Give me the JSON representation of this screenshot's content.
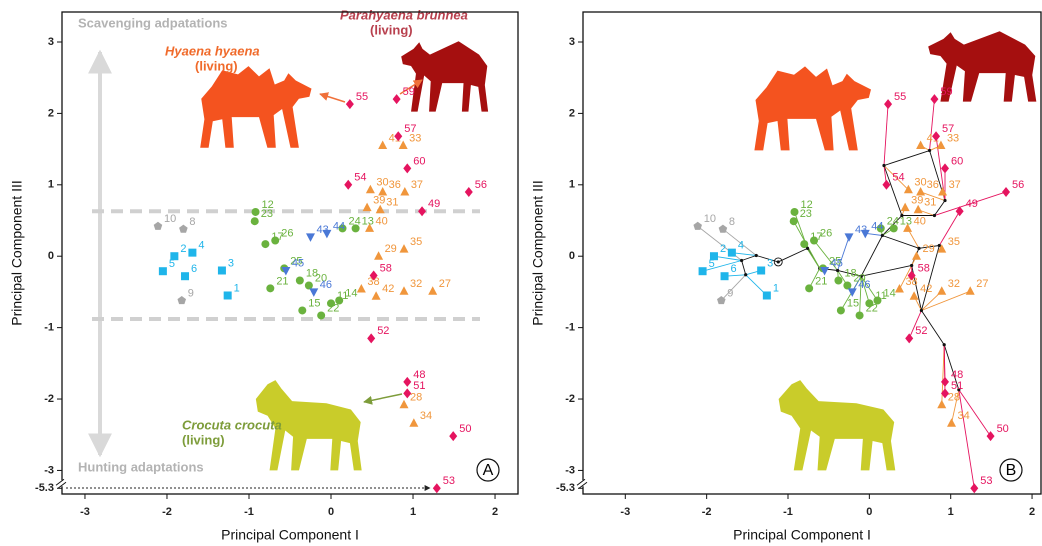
{
  "chart_data": [
    {
      "type": "scatter",
      "panel_label": "A",
      "xlabel": "Principal Component I",
      "ylabel": "Principal Component III",
      "xlim": [
        -3.28,
        2.28
      ],
      "ylim": [
        -5.38,
        3.42
      ],
      "ybreak": [
        -5.3,
        -3.25
      ],
      "xticks": [
        -3,
        -2,
        -1,
        0,
        1,
        2
      ],
      "yticks": [
        3,
        2,
        1,
        0,
        -1,
        -2,
        -3,
        -5.3
      ],
      "reference_lines": [
        0.63,
        -0.88
      ],
      "annotations": [
        "Scavenging adpatations",
        "Hunting adaptations",
        "Hyaena hyaena",
        "(living)",
        "Parahyaena brunnea",
        "(living)",
        "Crocuta crocuta",
        "(living)"
      ],
      "series": [
        {
          "color": "#a6a6a6",
          "marker": "pentagon",
          "labels": [
            10,
            8,
            9
          ],
          "x": [
            -2.11,
            -1.8,
            -1.82
          ],
          "y": [
            0.42,
            0.38,
            -0.62
          ]
        },
        {
          "color": "#1fb5ea",
          "marker": "square",
          "labels": [
            2,
            4,
            5,
            6,
            3,
            1
          ],
          "x": [
            -1.91,
            -1.69,
            -2.05,
            -1.78,
            -1.33,
            -1.26
          ],
          "y": [
            0.0,
            0.05,
            -0.21,
            -0.28,
            -0.2,
            -0.55
          ]
        },
        {
          "color": "#6ab23e",
          "marker": "circle",
          "labels": [
            12,
            23,
            17,
            26,
            25,
            21,
            18,
            20,
            15,
            22,
            11,
            14,
            24,
            13
          ],
          "x": [
            -0.92,
            -0.93,
            -0.8,
            -0.68,
            -0.57,
            -0.74,
            -0.38,
            -0.27,
            -0.35,
            -0.12,
            0,
            0.1,
            0.14,
            0.3
          ],
          "y": [
            0.62,
            0.49,
            0.17,
            0.22,
            -0.17,
            -0.45,
            -0.34,
            -0.41,
            -0.76,
            -0.83,
            -0.66,
            -0.62,
            0.39,
            0.39
          ]
        },
        {
          "color": "#4a78d6",
          "marker": "triangle-down",
          "labels": [
            44,
            43,
            45,
            46
          ],
          "x": [
            -0.05,
            -0.25,
            -0.55,
            -0.21
          ],
          "y": [
            0.32,
            0.27,
            -0.2,
            -0.5
          ]
        },
        {
          "color": "#f0963c",
          "marker": "triangle",
          "labels": [
            41,
            33,
            30,
            36,
            37,
            39,
            31,
            40,
            35,
            29,
            38,
            32,
            27,
            42,
            28,
            34
          ],
          "x": [
            0.63,
            0.88,
            0.48,
            0.63,
            0.9,
            0.44,
            0.6,
            0.47,
            0.89,
            0.58,
            0.37,
            0.89,
            1.24,
            0.55,
            0.89,
            1.01
          ],
          "y": [
            1.55,
            1.55,
            0.93,
            0.9,
            0.9,
            0.68,
            0.65,
            0.39,
            0.1,
            0.0,
            -0.46,
            -0.49,
            -0.49,
            -0.56,
            -2.08,
            -2.34
          ]
        },
        {
          "color": "#e5145f",
          "marker": "diamond",
          "labels": [
            55,
            59,
            57,
            60,
            54,
            56,
            49,
            58,
            52,
            48,
            51,
            50,
            53
          ],
          "x": [
            0.23,
            0.8,
            0.82,
            0.93,
            0.21,
            1.68,
            1.11,
            0.52,
            0.49,
            0.93,
            0.93,
            1.49,
            1.29
          ],
          "y": [
            2.13,
            2.2,
            1.68,
            1.23,
            1.0,
            0.9,
            0.63,
            -0.27,
            -1.15,
            -1.76,
            -1.92,
            -2.52,
            -5.3
          ]
        }
      ]
    },
    {
      "type": "scatter",
      "panel_label": "B",
      "xlabel": "Principal Component I",
      "ylabel": "Principal Component III",
      "xlim": [
        -3.52,
        2.11
      ],
      "ylim": [
        -5.38,
        3.42
      ],
      "ybreak": [
        -5.3,
        -3.25
      ],
      "xticks": [
        -3,
        -2,
        -1,
        0,
        1,
        2
      ],
      "yticks": [
        3,
        2,
        1,
        0,
        -1,
        -2,
        -3,
        -5.3
      ],
      "tree": {
        "root": 0,
        "x": [
          -1.12,
          -1.39,
          -1.57,
          -0.76,
          -0.61,
          -0.39,
          -0.1,
          0.16,
          0.4,
          0.61,
          0.8,
          0.93,
          0.18,
          0.86,
          0.64,
          0.92,
          1.1,
          0.74,
          0.52,
          -1.52
        ],
        "y": [
          -0.08,
          0.01,
          -0.06,
          0.11,
          -0.17,
          -0.2,
          -0.28,
          0.29,
          0.57,
          0.11,
          0.57,
          0.78,
          1.27,
          0.15,
          -0.76,
          -1.24,
          -1.87,
          1.48,
          -0.13,
          -0.26
        ],
        "edges": [
          [
            0,
            1
          ],
          [
            1,
            2
          ],
          [
            2,
            19
          ],
          [
            0,
            3
          ],
          [
            3,
            4
          ],
          [
            4,
            5
          ],
          [
            5,
            6
          ],
          [
            6,
            7
          ],
          [
            6,
            18
          ],
          [
            7,
            8
          ],
          [
            8,
            12
          ],
          [
            8,
            10
          ],
          [
            10,
            11
          ],
          [
            11,
            17
          ],
          [
            7,
            9
          ],
          [
            9,
            13
          ],
          [
            13,
            14
          ],
          [
            14,
            15
          ],
          [
            15,
            16
          ],
          [
            18,
            14
          ],
          [
            9,
            18
          ],
          [
            12,
            17
          ]
        ]
      },
      "series": [
        {
          "color": "#a6a6a6",
          "marker": "pentagon",
          "labels": [
            10,
            8,
            9
          ],
          "x": [
            -2.11,
            -1.8,
            -1.82
          ],
          "y": [
            0.42,
            0.38,
            -0.62
          ],
          "parent": [
            2,
            1,
            19
          ]
        },
        {
          "color": "#1fb5ea",
          "marker": "square",
          "labels": [
            2,
            4,
            5,
            6,
            3,
            1
          ],
          "x": [
            -1.91,
            -1.69,
            -2.05,
            -1.78,
            -1.33,
            -1.26
          ],
          "y": [
            0.0,
            0.05,
            -0.21,
            -0.28,
            -0.2,
            -0.55
          ],
          "parent": [
            2,
            1,
            2,
            19,
            19,
            19
          ]
        },
        {
          "color": "#6ab23e",
          "marker": "circle",
          "labels": [
            12,
            23,
            17,
            26,
            25,
            21,
            18,
            20,
            15,
            22,
            11,
            14,
            24,
            13
          ],
          "x": [
            -0.92,
            -0.93,
            -0.8,
            -0.68,
            -0.57,
            -0.74,
            -0.38,
            -0.27,
            -0.35,
            -0.12,
            0,
            0.1,
            0.14,
            0.3
          ],
          "y": [
            0.62,
            0.49,
            0.17,
            0.22,
            -0.17,
            -0.45,
            -0.34,
            -0.41,
            -0.76,
            -0.83,
            -0.66,
            -0.62,
            0.39,
            0.39
          ],
          "parent": [
            3,
            4,
            4,
            5,
            4,
            4,
            5,
            5,
            6,
            6,
            6,
            6,
            7,
            7
          ]
        },
        {
          "color": "#4a78d6",
          "marker": "triangle-down",
          "labels": [
            44,
            43,
            45,
            46
          ],
          "x": [
            -0.05,
            -0.25,
            -0.55,
            -0.21
          ],
          "y": [
            0.32,
            0.27,
            -0.2,
            -0.5
          ],
          "parent": [
            7,
            5,
            4,
            6
          ]
        },
        {
          "color": "#f0963c",
          "marker": "triangle",
          "labels": [
            41,
            33,
            30,
            36,
            37,
            39,
            31,
            40,
            35,
            29,
            38,
            32,
            27,
            42,
            28,
            34
          ],
          "x": [
            0.63,
            0.88,
            0.48,
            0.63,
            0.9,
            0.44,
            0.6,
            0.47,
            0.89,
            0.58,
            0.37,
            0.89,
            1.24,
            0.55,
            0.89,
            1.01
          ],
          "y": [
            1.55,
            1.55,
            0.93,
            0.9,
            0.9,
            0.68,
            0.65,
            0.39,
            0.1,
            0.0,
            -0.46,
            -0.49,
            -0.49,
            -0.56,
            -2.08,
            -2.34
          ],
          "parent": [
            17,
            17,
            12,
            11,
            11,
            8,
            10,
            9,
            13,
            18,
            18,
            14,
            14,
            14,
            15,
            16
          ]
        },
        {
          "color": "#e5145f",
          "marker": "diamond",
          "labels": [
            55,
            59,
            57,
            60,
            54,
            56,
            49,
            58,
            52,
            48,
            51,
            50,
            53
          ],
          "x": [
            0.23,
            0.8,
            0.82,
            0.93,
            0.21,
            1.68,
            1.11,
            0.52,
            0.49,
            0.93,
            0.93,
            1.49,
            1.29
          ],
          "y": [
            2.13,
            2.2,
            1.68,
            1.23,
            1.0,
            0.9,
            0.63,
            -0.27,
            -1.15,
            -1.76,
            -1.92,
            -2.52,
            -5.3
          ],
          "parent": [
            12,
            17,
            11,
            11,
            12,
            10,
            13,
            18,
            14,
            15,
            15,
            16,
            16
          ]
        }
      ]
    }
  ]
}
